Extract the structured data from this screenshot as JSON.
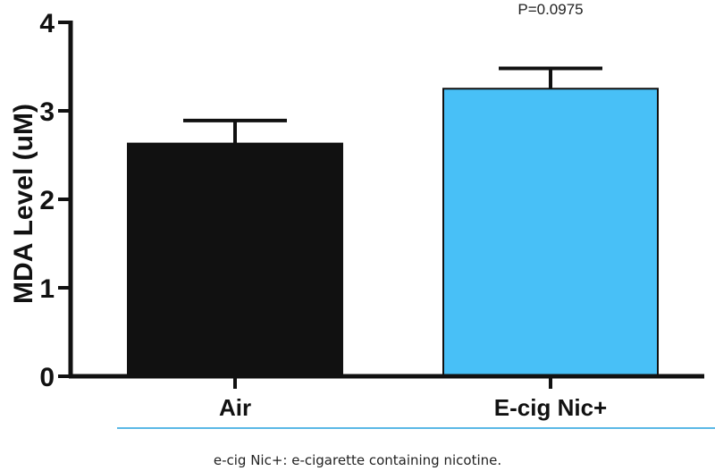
{
  "chart_data": {
    "type": "bar",
    "categories": [
      "Air",
      "E-cig Nic+"
    ],
    "values": [
      2.63,
      3.25
    ],
    "errors": [
      0.26,
      0.23
    ],
    "colors": [
      "#111111",
      "#48c0f7"
    ],
    "xlabel": "",
    "ylabel": "MDA Level (uM)",
    "ylim": [
      0,
      4
    ],
    "yticks": [
      0,
      1,
      2,
      3,
      4
    ],
    "annotation": "P=0.0975",
    "grid": false
  },
  "caption": "e-cig Nic+: e-cigarette containing nicotine."
}
